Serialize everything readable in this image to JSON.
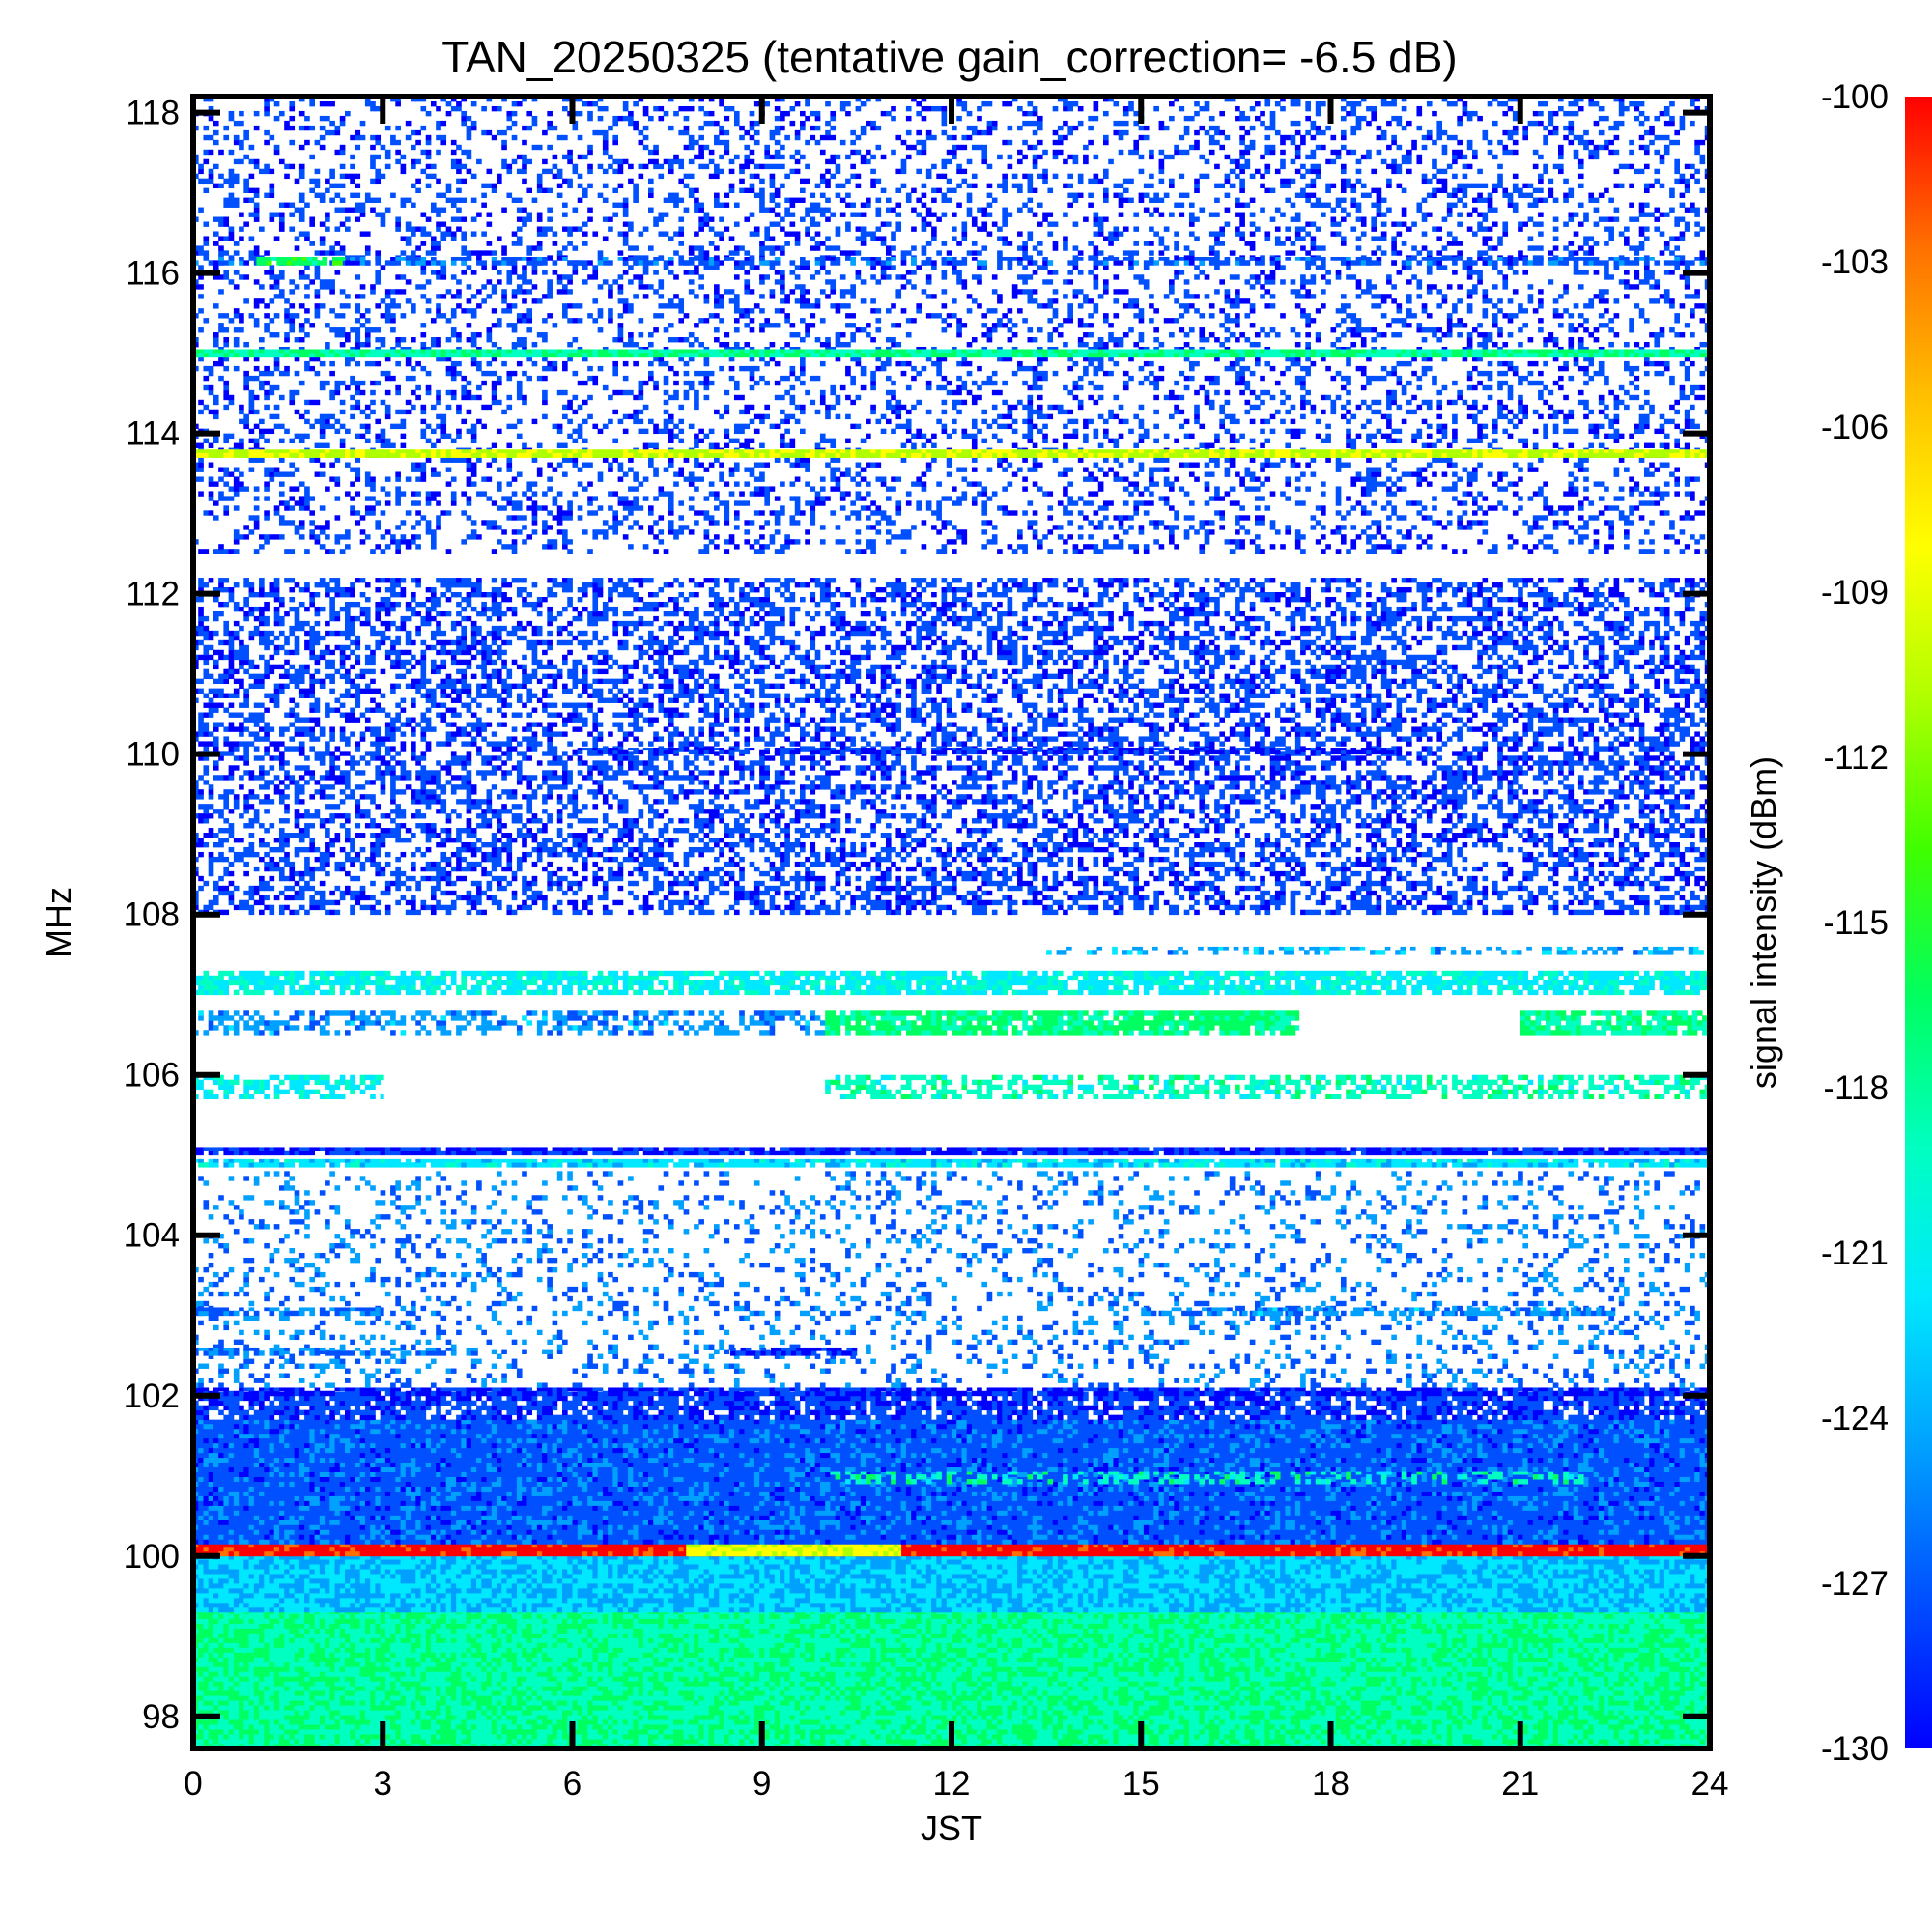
{
  "chart_data": {
    "type": "heatmap",
    "title": "TAN_20250325 (tentative gain_correction= -6.5 dB)",
    "xlabel": "JST",
    "ylabel": "MHz",
    "colorbar_label": "signal intensity (dBm)",
    "xlim": [
      0,
      24
    ],
    "ylim": [
      97.6,
      118.2
    ],
    "clim": [
      -130,
      -100
    ],
    "x_ticks": [
      0,
      3,
      6,
      9,
      12,
      15,
      18,
      21,
      24
    ],
    "x_tick_labels": [
      "0",
      "3",
      "6",
      "9",
      "12",
      "15",
      "18",
      "21",
      "24"
    ],
    "y_ticks": [
      98,
      100,
      102,
      104,
      106,
      108,
      110,
      112,
      114,
      116,
      118
    ],
    "y_tick_labels": [
      "98",
      "100",
      "102",
      "104",
      "106",
      "108",
      "110",
      "112",
      "114",
      "116",
      "118"
    ],
    "colorbar_ticks": [
      -100,
      -103,
      -106,
      -109,
      -112,
      -115,
      -118,
      -121,
      -124,
      -127,
      -130
    ],
    "colorbar_tick_labels": [
      "-100",
      "-103",
      "-106",
      "-109",
      "-112",
      "-115",
      "-118",
      "-121",
      "-124",
      "-127",
      "-130"
    ],
    "colormap": [
      "#0000ff",
      "#0050ff",
      "#00a0ff",
      "#00e8ff",
      "#00ffc0",
      "#00ff60",
      "#40ff00",
      "#b0ff00",
      "#ffff00",
      "#ffc000",
      "#ff7000",
      "#ff0000"
    ],
    "grid": false,
    "bands": [
      {
        "f_from": 97.6,
        "f_to": 99.3,
        "t_from": 0,
        "t_to": 24,
        "level": -118,
        "density": 1.0
      },
      {
        "f_from": 99.3,
        "f_to": 100.0,
        "t_from": 0,
        "t_to": 24,
        "level": -123,
        "density": 1.0
      },
      {
        "f_from": 100.0,
        "f_to": 100.15,
        "t_from": 0,
        "t_to": 24,
        "level": -100,
        "density": 1.0
      },
      {
        "f_from": 100.0,
        "f_to": 100.15,
        "t_from": 7.8,
        "t_to": 11.2,
        "level": -109,
        "density": 1.0
      },
      {
        "f_from": 100.15,
        "f_to": 101.7,
        "t_from": 0,
        "t_to": 24,
        "level": -127,
        "density": 1.0
      },
      {
        "f_from": 100.9,
        "f_to": 101.05,
        "t_from": 10.0,
        "t_to": 22.0,
        "level": -119,
        "density": 0.4
      },
      {
        "f_from": 101.7,
        "f_to": 102.05,
        "t_from": 0,
        "t_to": 24,
        "level": -128,
        "density": 0.8
      },
      {
        "f_from": 102.0,
        "f_to": 102.1,
        "t_from": 0,
        "t_to": 24,
        "level": -129,
        "density": 0.9
      },
      {
        "f_from": 102.1,
        "f_to": 104.8,
        "t_from": 0,
        "t_to": 24,
        "level": -126,
        "density": 0.18
      },
      {
        "f_from": 102.5,
        "f_to": 102.6,
        "t_from": 0,
        "t_to": 4.5,
        "level": -126,
        "density": 0.7
      },
      {
        "f_from": 102.5,
        "f_to": 102.6,
        "t_from": 8.5,
        "t_to": 10.5,
        "level": -129,
        "density": 0.9
      },
      {
        "f_from": 103.0,
        "f_to": 103.1,
        "t_from": 0,
        "t_to": 3.0,
        "level": -126,
        "density": 0.7
      },
      {
        "f_from": 103.0,
        "f_to": 103.1,
        "t_from": 15.0,
        "t_to": 22.5,
        "level": -125,
        "density": 0.6
      },
      {
        "f_from": 104.85,
        "f_to": 104.95,
        "t_from": 0,
        "t_to": 24,
        "level": -122,
        "density": 0.9
      },
      {
        "f_from": 105.0,
        "f_to": 105.1,
        "t_from": 0,
        "t_to": 24,
        "level": -129,
        "density": 0.95
      },
      {
        "f_from": 105.7,
        "f_to": 106.0,
        "t_from": 0,
        "t_to": 3.0,
        "level": -121,
        "density": 0.6
      },
      {
        "f_from": 105.7,
        "f_to": 106.0,
        "t_from": 10.0,
        "t_to": 24,
        "level": -119,
        "density": 0.55
      },
      {
        "f_from": 106.5,
        "f_to": 106.8,
        "t_from": 0,
        "t_to": 10.0,
        "level": -125,
        "density": 0.5
      },
      {
        "f_from": 106.5,
        "f_to": 106.8,
        "t_from": 10.0,
        "t_to": 17.5,
        "level": -117,
        "density": 0.85
      },
      {
        "f_from": 106.5,
        "f_to": 106.8,
        "t_from": 21.0,
        "t_to": 24,
        "level": -118,
        "density": 0.8
      },
      {
        "f_from": 107.0,
        "f_to": 107.3,
        "t_from": 0,
        "t_to": 24,
        "level": -121,
        "density": 0.8
      },
      {
        "f_from": 107.5,
        "f_to": 107.6,
        "t_from": 13.5,
        "t_to": 24,
        "level": -124,
        "density": 0.45
      },
      {
        "f_from": 108.0,
        "f_to": 112.2,
        "t_from": 0,
        "t_to": 24,
        "level": -128,
        "density": 0.45
      },
      {
        "f_from": 110.0,
        "f_to": 110.08,
        "t_from": 6.0,
        "t_to": 19.0,
        "level": -129,
        "density": 0.8
      },
      {
        "f_from": 112.5,
        "f_to": 118.2,
        "t_from": 0,
        "t_to": 24,
        "level": -128,
        "density": 0.26
      },
      {
        "f_from": 113.7,
        "f_to": 113.8,
        "t_from": 0,
        "t_to": 24,
        "level": -110,
        "density": 1.0
      },
      {
        "f_from": 114.95,
        "f_to": 115.05,
        "t_from": 0,
        "t_to": 24,
        "level": -118,
        "density": 1.0
      },
      {
        "f_from": 116.1,
        "f_to": 116.2,
        "t_from": 0,
        "t_to": 24,
        "level": -127,
        "density": 0.55
      },
      {
        "f_from": 116.1,
        "f_to": 116.2,
        "t_from": 1.0,
        "t_to": 2.4,
        "level": -116,
        "density": 0.9
      }
    ]
  }
}
